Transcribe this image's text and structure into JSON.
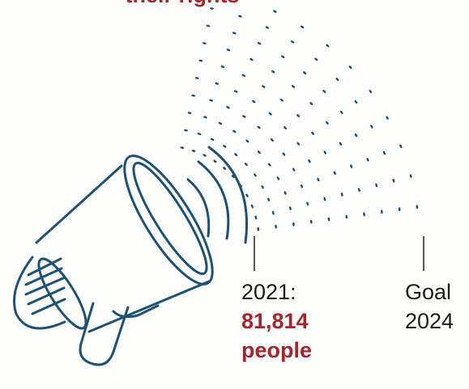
{
  "header": {
    "title_fragment": "their rights"
  },
  "markers": [
    {
      "label": "2021:",
      "value": "81,814",
      "unit": "people"
    },
    {
      "label": "Goal",
      "year": "2024"
    }
  ]
}
